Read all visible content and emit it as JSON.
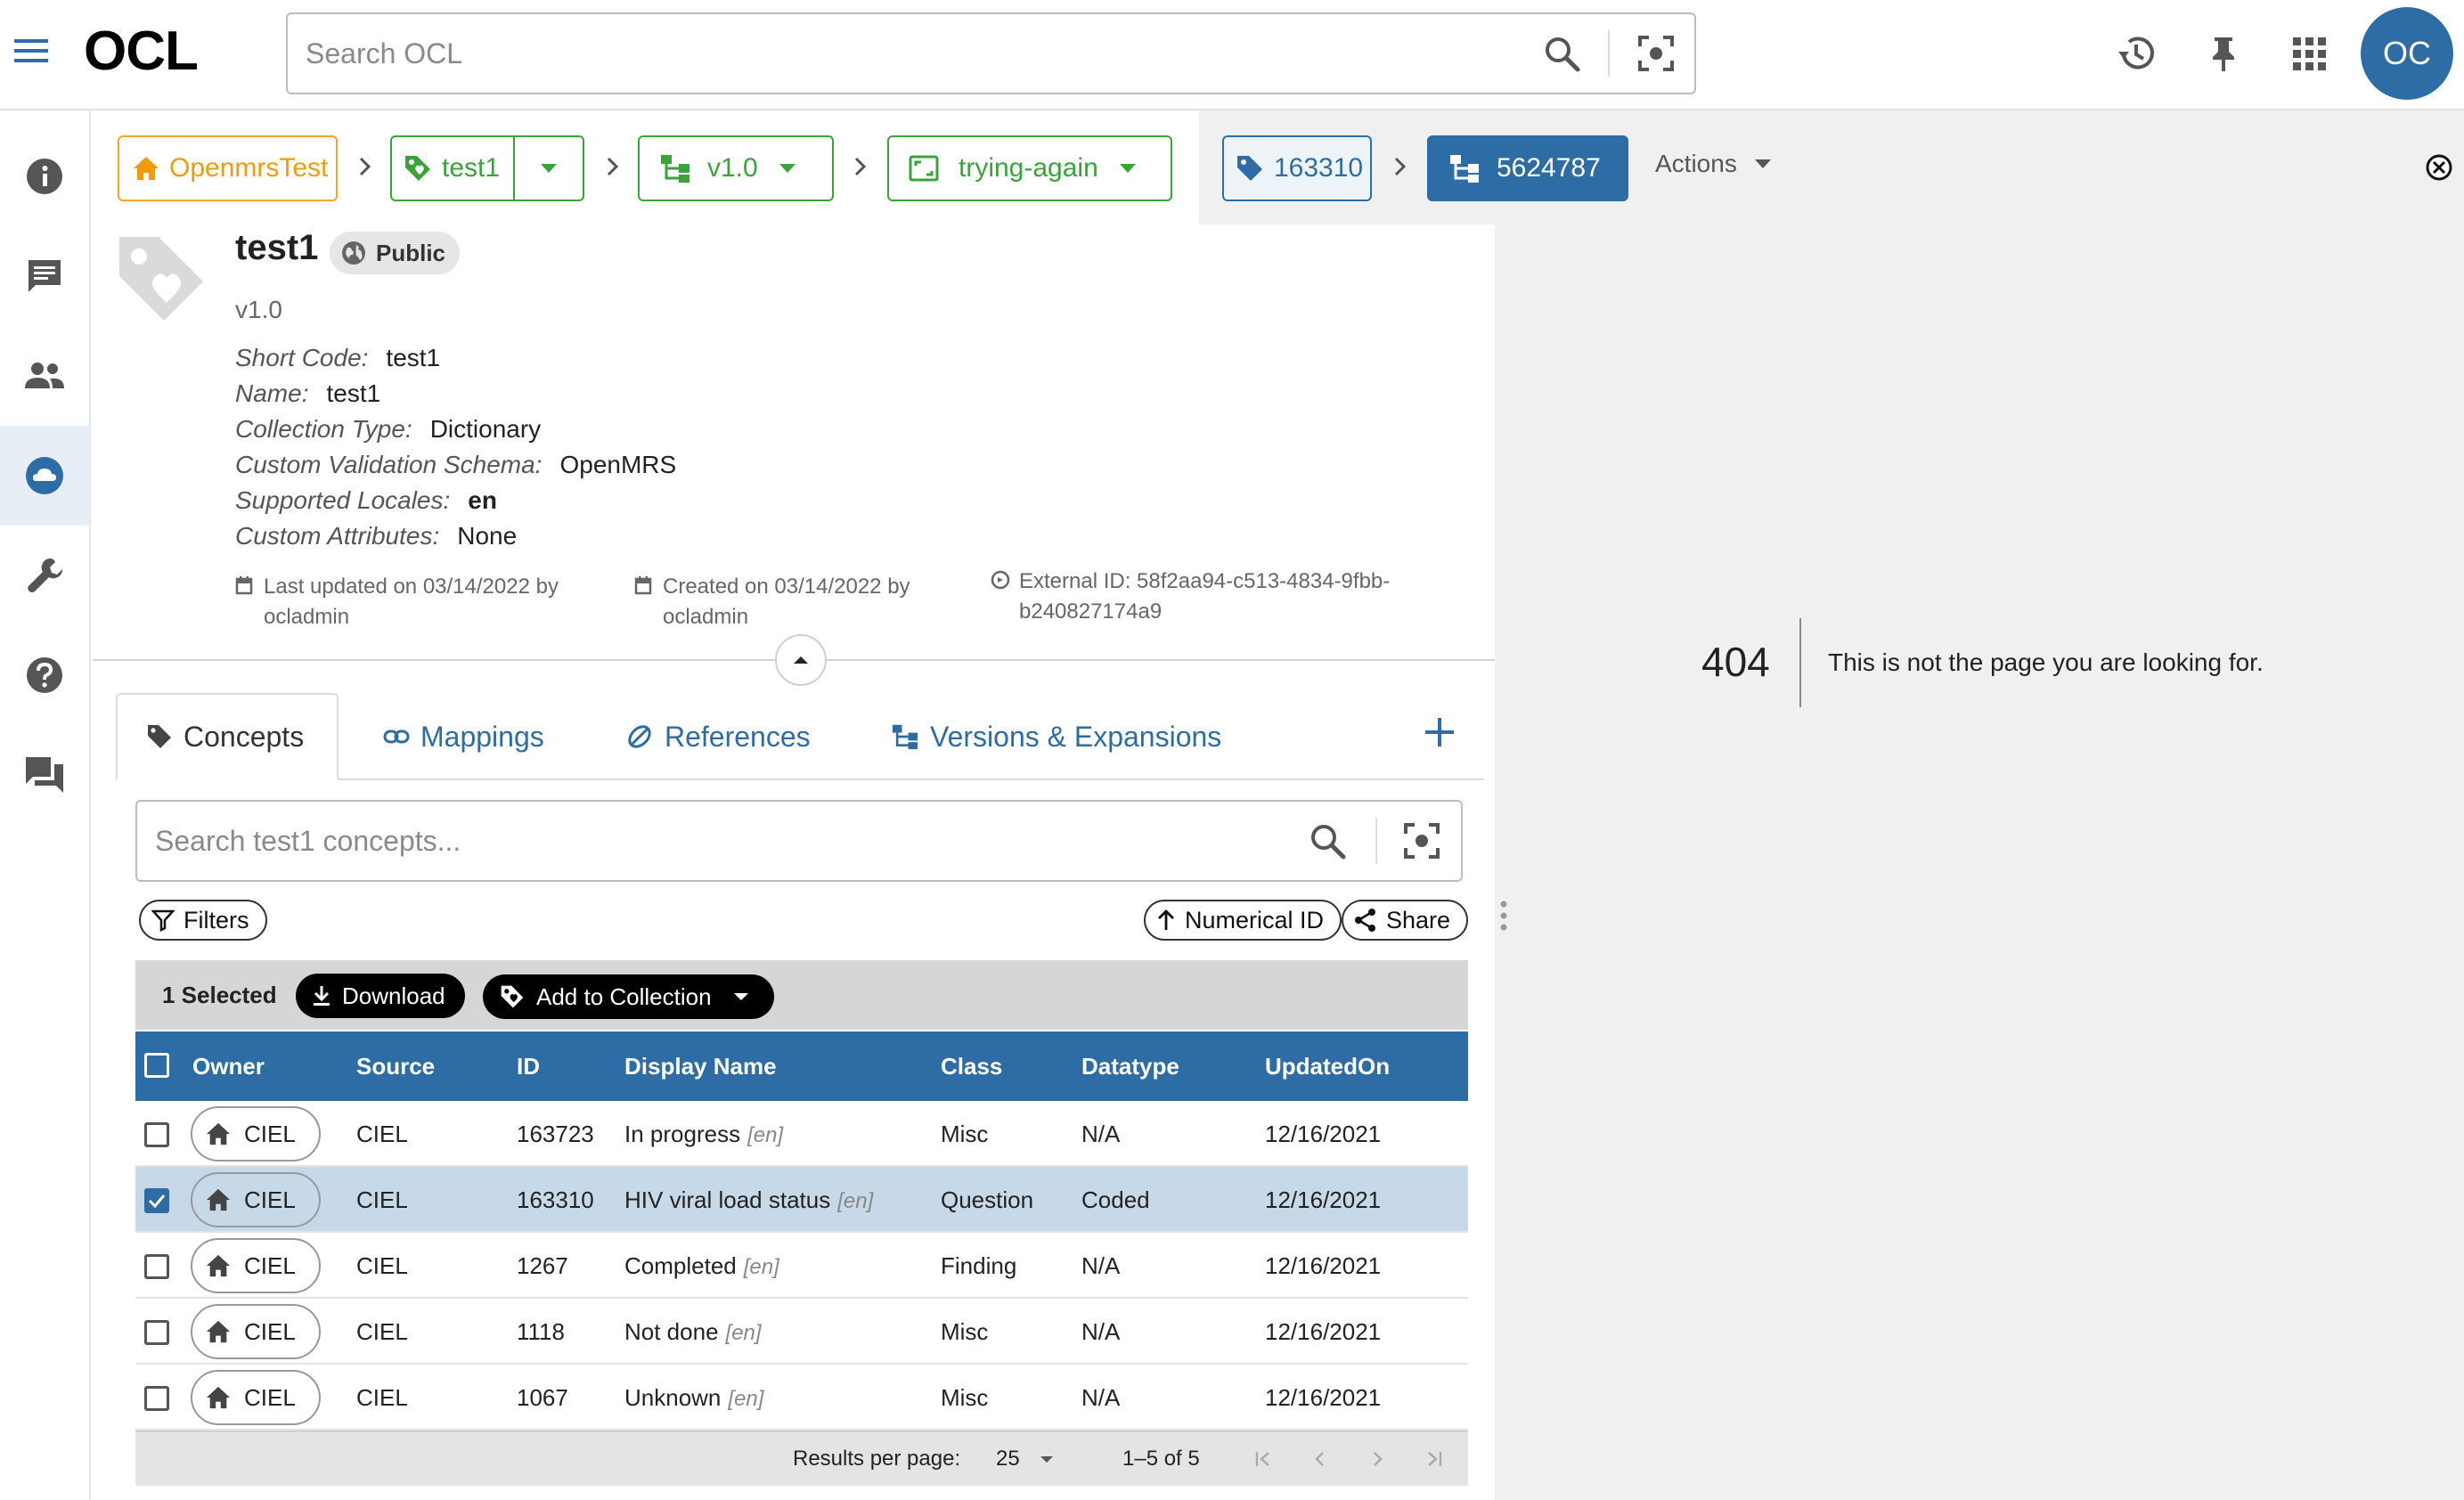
{
  "app": {
    "logo": "OCL",
    "avatar_initials": "OC"
  },
  "search": {
    "placeholder": "Search OCL"
  },
  "nav": {
    "items": [
      "info-icon",
      "comment-icon",
      "people-icon",
      "cloud-icon",
      "wrench-icon",
      "help-icon",
      "forum-icon"
    ],
    "active": "cloud-icon"
  },
  "breadcrumbs": {
    "org": "OpenmrsTest",
    "collection": "test1",
    "version": "v1.0",
    "expansion": "trying-again",
    "concept": "163310",
    "mapping": "5624787",
    "actions": "Actions"
  },
  "collection": {
    "title": "test1",
    "visibility": "Public",
    "version": "v1.0",
    "attributes": [
      {
        "key": "Short Code:",
        "value": "test1",
        "bold": false
      },
      {
        "key": "Name:",
        "value": "test1",
        "bold": false
      },
      {
        "key": "Collection Type:",
        "value": "Dictionary",
        "bold": false
      },
      {
        "key": "Custom Validation Schema:",
        "value": "OpenMRS",
        "bold": false
      },
      {
        "key": "Supported Locales:",
        "value": "en",
        "bold": true
      },
      {
        "key": "Custom Attributes:",
        "value": "None",
        "bold": false
      }
    ],
    "last_updated": "Last updated on 03/14/2022 by",
    "last_updated_by": "ocladmin",
    "created": "Created on 03/14/2022 by",
    "created_by": "ocladmin",
    "external_id_1": "External ID: 58f2aa94-c513-4834-9fbb-",
    "external_id_2": "b240827174a9"
  },
  "tabs": {
    "concepts": "Concepts",
    "mappings": "Mappings",
    "references": "References",
    "versions": "Versions & Expansions"
  },
  "concept_search": {
    "placeholder": "Search test1 concepts..."
  },
  "toolbar": {
    "filters": "Filters",
    "sort": "Numerical ID",
    "share": "Share",
    "selected": "1 Selected",
    "download": "Download",
    "add_to_collection": "Add to Collection"
  },
  "table": {
    "headers": [
      "Owner",
      "Source",
      "ID",
      "Display Name",
      "Class",
      "Datatype",
      "UpdatedOn"
    ],
    "rows": [
      {
        "owner": "CIEL",
        "source": "CIEL",
        "id": "163723",
        "name": "In progress",
        "locale": "[en]",
        "class": "Misc",
        "datatype": "N/A",
        "updated": "12/16/2021",
        "selected": false
      },
      {
        "owner": "CIEL",
        "source": "CIEL",
        "id": "163310",
        "name": "HIV viral load status",
        "locale": "[en]",
        "class": "Question",
        "datatype": "Coded",
        "updated": "12/16/2021",
        "selected": true
      },
      {
        "owner": "CIEL",
        "source": "CIEL",
        "id": "1267",
        "name": "Completed",
        "locale": "[en]",
        "class": "Finding",
        "datatype": "N/A",
        "updated": "12/16/2021",
        "selected": false
      },
      {
        "owner": "CIEL",
        "source": "CIEL",
        "id": "1118",
        "name": "Not done",
        "locale": "[en]",
        "class": "Misc",
        "datatype": "N/A",
        "updated": "12/16/2021",
        "selected": false
      },
      {
        "owner": "CIEL",
        "source": "CIEL",
        "id": "1067",
        "name": "Unknown",
        "locale": "[en]",
        "class": "Misc",
        "datatype": "N/A",
        "updated": "12/16/2021",
        "selected": false
      }
    ]
  },
  "pagination": {
    "label": "Results per page:",
    "per_page": "25",
    "range": "1–5 of 5"
  },
  "error": {
    "code": "404",
    "message": "This is not the page you are looking for."
  },
  "colors": {
    "primary": "#2e6ca5",
    "org": "#f29b0a",
    "collection": "#3aa33a"
  }
}
